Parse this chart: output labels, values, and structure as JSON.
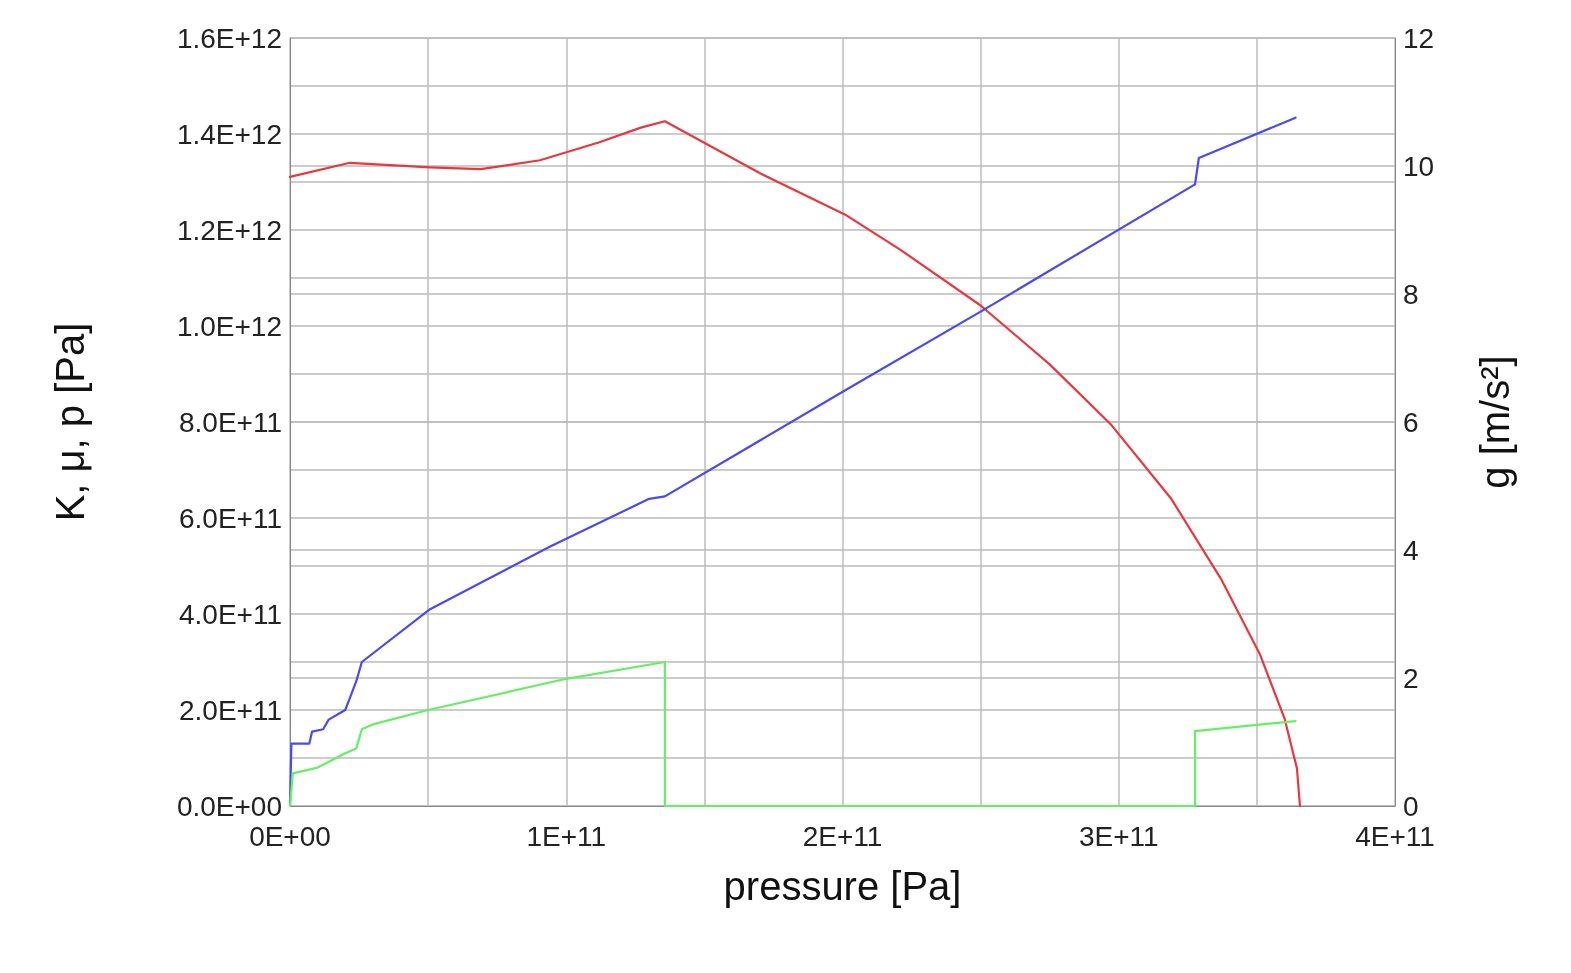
{
  "chart_data": {
    "type": "line",
    "xlabel": "pressure [Pa]",
    "ylabel": "K, μ, p [Pa]",
    "y2label": "g [m/s²]",
    "xlim": [
      0,
      400000000000
    ],
    "xticks": [
      {
        "value": 0,
        "label": "0E+00"
      },
      {
        "value": 100000000000,
        "label": "1E+11"
      },
      {
        "value": 200000000000,
        "label": "2E+11"
      },
      {
        "value": 300000000000,
        "label": "3E+11"
      },
      {
        "value": 400000000000,
        "label": "4E+11"
      }
    ],
    "ylim": [
      0,
      1600000000000
    ],
    "yticks": [
      {
        "value": 0,
        "label": "0.0E+00"
      },
      {
        "value": 200000000000,
        "label": "2.0E+11"
      },
      {
        "value": 400000000000,
        "label": "4.0E+11"
      },
      {
        "value": 600000000000,
        "label": "6.0E+11"
      },
      {
        "value": 800000000000,
        "label": "8.0E+11"
      },
      {
        "value": 1000000000000,
        "label": "1.0E+12"
      },
      {
        "value": 1200000000000,
        "label": "1.2E+12"
      },
      {
        "value": 1400000000000,
        "label": "1.4E+12"
      },
      {
        "value": 1600000000000,
        "label": "1.6E+12"
      }
    ],
    "y2lim": [
      0,
      12
    ],
    "y2ticks": [
      0,
      2,
      4,
      6,
      8,
      10,
      12
    ],
    "grid": true,
    "series": [
      {
        "color": "#e8383d",
        "axis": "y2",
        "x": [
          0,
          21700000000,
          50700000000,
          69000000000,
          90500000000,
          112000000000,
          127000000000,
          135700000000,
          170000000000,
          201000000000,
          221000000000,
          250000000000,
          275000000000,
          297000000000,
          319000000000,
          337000000000,
          351000000000,
          360000000000,
          364500000000,
          365600000000
        ],
        "values": [
          9.83,
          10.05,
          9.98,
          9.95,
          10.09,
          10.37,
          10.6,
          10.7,
          9.89,
          9.24,
          8.69,
          7.82,
          6.9,
          5.97,
          4.8,
          3.55,
          2.38,
          1.37,
          0.59,
          0
        ]
      },
      {
        "color": "#4a4af0",
        "x": [
          0,
          500000000,
          7000000000,
          8000000000,
          12000000000,
          14000000000,
          20000000000,
          22000000000,
          24000000000,
          26000000000,
          50700000000,
          94000000000,
          130000000000,
          135700000000,
          201000000000,
          250000000000,
          327600000000,
          329000000000,
          364000000000
        ],
        "values": [
          0,
          130000000000,
          130000000000,
          155000000000,
          160000000000,
          180000000000,
          200000000000,
          230000000000,
          260000000000,
          300000000000,
          410000000000,
          540000000000,
          640000000000,
          645000000000,
          866000000000,
          1030000000000,
          1295000000000,
          1350000000000,
          1434000000000
        ]
      },
      {
        "color": "#66ee66",
        "x": [
          0,
          1000000000,
          10000000000,
          20000000000,
          24000000000,
          26000000000,
          30000000000,
          50000000000,
          100000000000,
          135700000000,
          135700000000,
          327600000000,
          327600000000,
          364000000000
        ],
        "values": [
          0,
          68000000000,
          80000000000,
          110000000000,
          120000000000,
          160000000000,
          170000000000,
          200000000000,
          265000000000,
          300000000000,
          0,
          0,
          156000000000,
          177000000000
        ]
      }
    ]
  }
}
